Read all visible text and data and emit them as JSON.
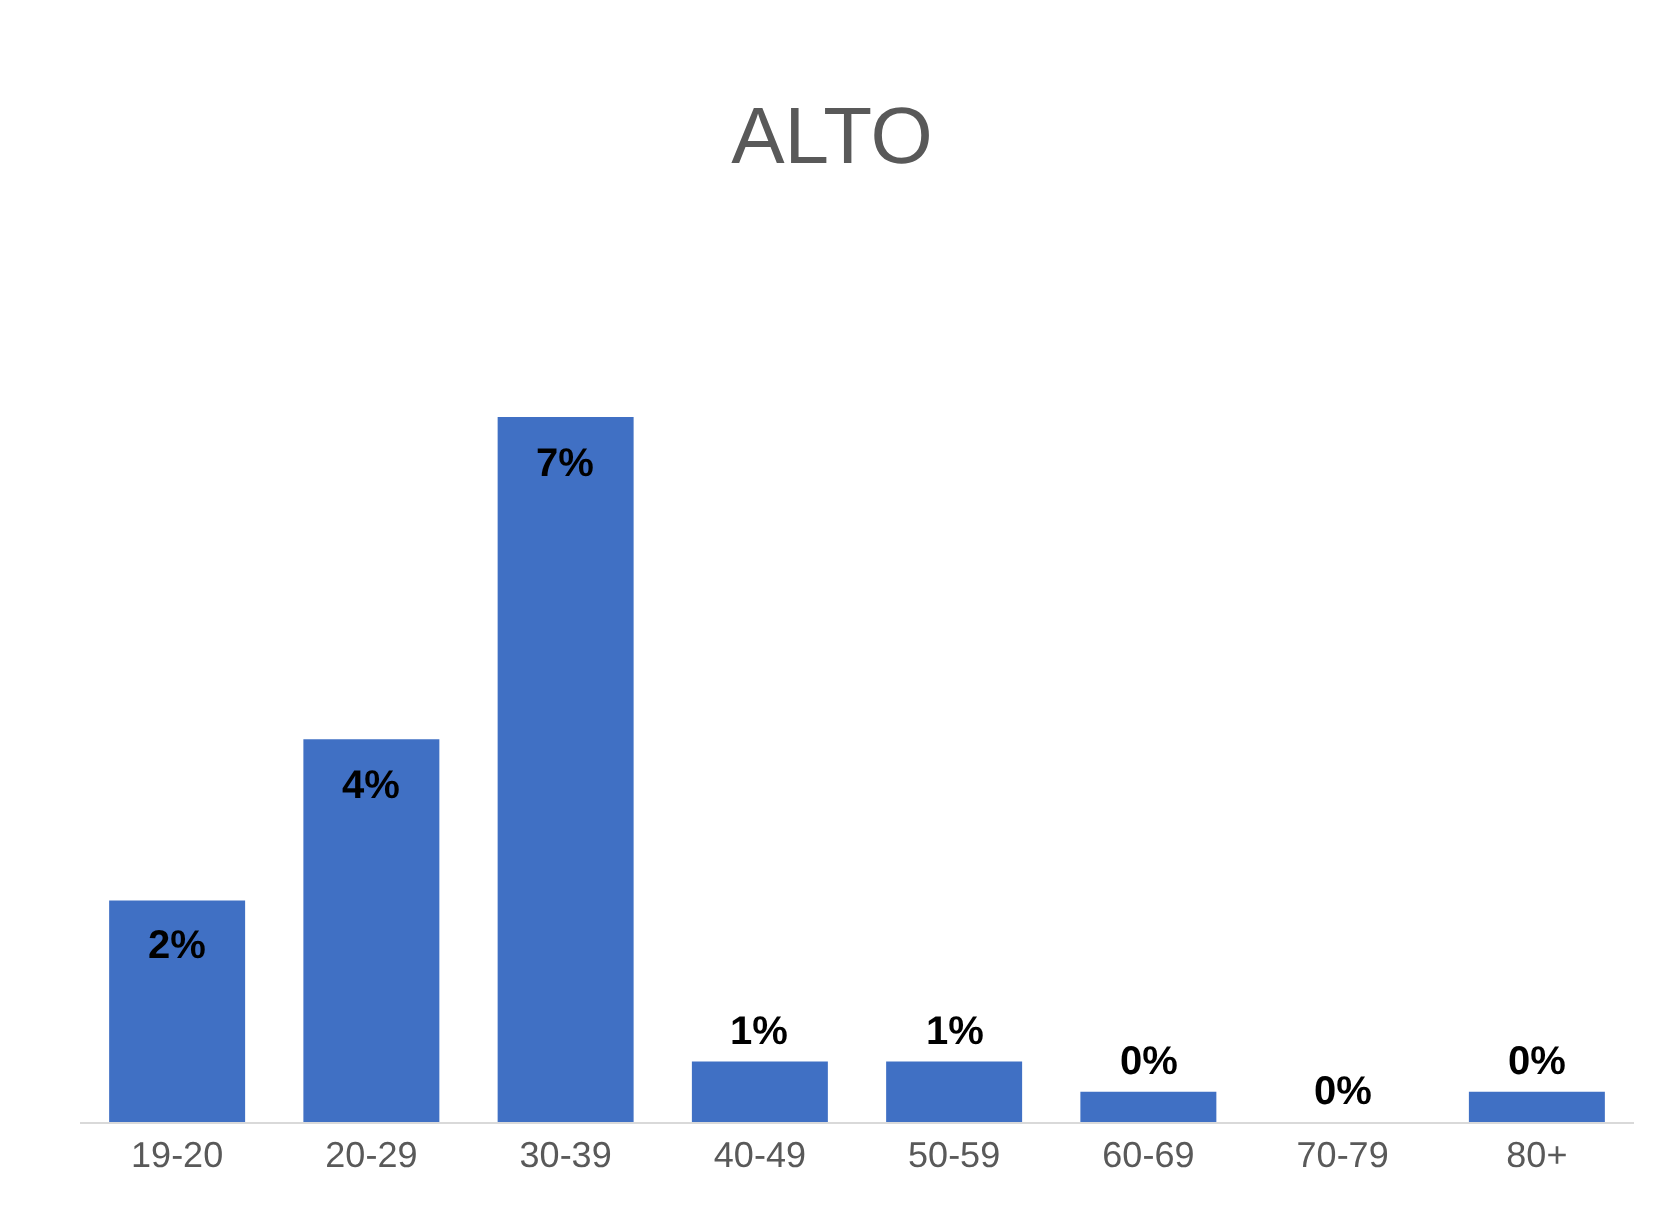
{
  "chart_data": {
    "type": "bar",
    "title": "ALTO",
    "categories": [
      "19-20",
      "20-29",
      "30-39",
      "40-49",
      "50-59",
      "60-69",
      "70-79",
      "80+"
    ],
    "values": [
      2.2,
      3.8,
      7,
      0.6,
      0.6,
      0.3,
      0,
      0.3
    ],
    "value_labels": [
      "2%",
      "4%",
      "7%",
      "1%",
      "1%",
      "0%",
      "0%",
      "0%"
    ],
    "color": "#4070c4"
  }
}
